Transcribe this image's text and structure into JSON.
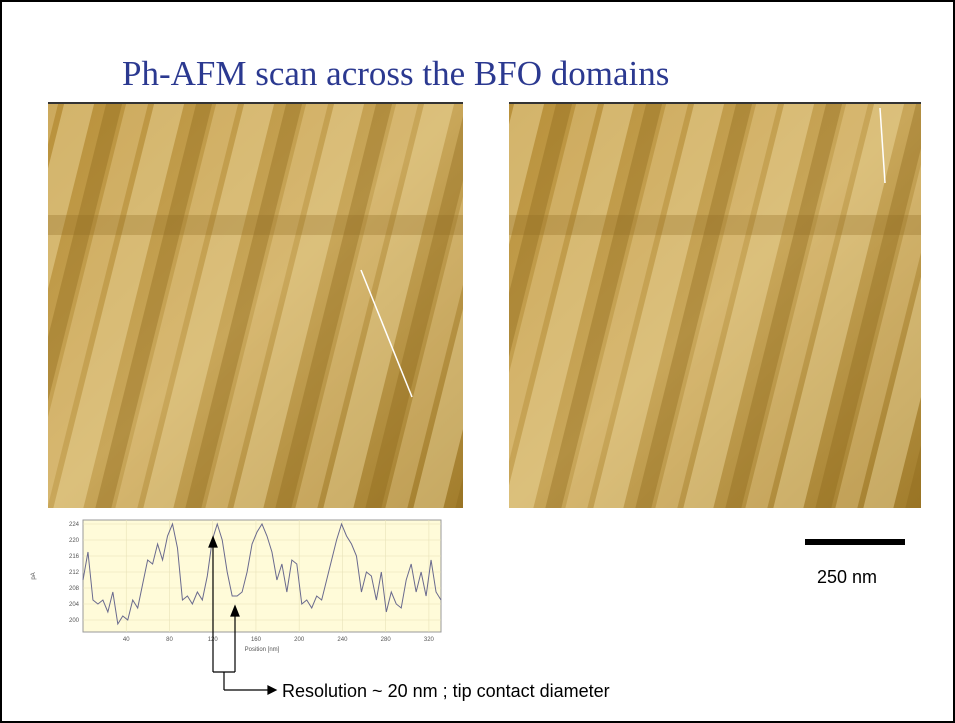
{
  "title": "Ph-AFM scan across the BFO domains",
  "scale_bar": {
    "label": "250 nm"
  },
  "annotation": "Resolution ~ 20 nm ; tip contact diameter",
  "chart_data": {
    "type": "line",
    "xlabel": "Position [nm]",
    "ylabel": "pA",
    "x": [
      0,
      4.6,
      9.2,
      13.8,
      18.4,
      23,
      27.6,
      32.2,
      36.8,
      41.4,
      46,
      50.6,
      55.2,
      59.8,
      64.4,
      69,
      73.6,
      78.2,
      82.8,
      87.4,
      92,
      96.6,
      101.2,
      105.8,
      110.4,
      115,
      119.6,
      124.2,
      128.8,
      133.4,
      138,
      142.6,
      147.2,
      151.8,
      156.4,
      161,
      165.6,
      170.2,
      174.8,
      179.4,
      184,
      188.6,
      193.2,
      197.8,
      202.4,
      207,
      211.6,
      216.2,
      220.8,
      225.4,
      230,
      234.6,
      239.2,
      243.8,
      248.4,
      253,
      257.6,
      262.2,
      266.8,
      271.4,
      276,
      280.6,
      285.2,
      289.8,
      294.4,
      299,
      303.6,
      308.2,
      312.8,
      317.4,
      322,
      326.6,
      331.2
    ],
    "series": [
      {
        "color": "#6a6a8e",
        "values": [
          210,
          217,
          205,
          204,
          205,
          202,
          207,
          199,
          201,
          200,
          205,
          203,
          209,
          215,
          214,
          219,
          215,
          221,
          224,
          218,
          205,
          206,
          204,
          207,
          205,
          211,
          220,
          224,
          220,
          212,
          206,
          206,
          207,
          212,
          219,
          222,
          224,
          221,
          217,
          210,
          214,
          207,
          215,
          214,
          204,
          205,
          203,
          206,
          205,
          210,
          215,
          220,
          224,
          221,
          219,
          216,
          207,
          212,
          211,
          205,
          212,
          202,
          207,
          204,
          203,
          210,
          214,
          207,
          212,
          206,
          215,
          207,
          205
        ]
      }
    ],
    "xlim": [
      0,
      331.2
    ],
    "ylim": [
      197,
      225
    ],
    "xticks": [
      40,
      80,
      120,
      160,
      200,
      240,
      280,
      320
    ],
    "yticks": [
      200,
      204,
      208,
      212,
      216,
      220,
      224
    ],
    "grid": true
  }
}
